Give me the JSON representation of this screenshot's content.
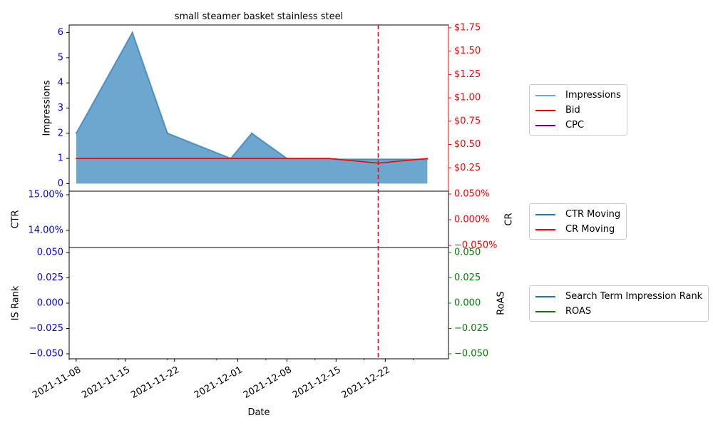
{
  "chart_data": {
    "type": "area",
    "title": "small steamer basket stainless steel",
    "xlabel": "Date",
    "x_ticks": [
      "2021-11-08",
      "2021-11-15",
      "2021-11-22",
      "2021-12-01",
      "2021-12-08",
      "2021-12-15",
      "2021-12-22"
    ],
    "x_range": [
      "2021-11-07",
      "2021-12-31"
    ],
    "marker_date": "2021-12-21",
    "marker_color": "#ff0000",
    "panels": [
      {
        "id": "top",
        "left_axis": {
          "label": "Impressions",
          "ticks": [
            "0",
            "1",
            "2",
            "3",
            "4",
            "5",
            "6"
          ],
          "ylim": [
            -0.3,
            6.3
          ],
          "color": "#0000ff"
        },
        "right_axis": {
          "label": "",
          "ticks": [
            "$0.25",
            "$0.50",
            "$0.75",
            "$1.00",
            "$1.25",
            "$1.50",
            "$1.75"
          ],
          "tick_values": [
            0.25,
            0.5,
            0.75,
            1.0,
            1.25,
            1.5,
            1.75
          ],
          "ylim": [
            0,
            1.78
          ],
          "color": "#ff0000"
        },
        "series": [
          {
            "name": "Impressions",
            "axis": "left",
            "color": "#1f77b4",
            "kind": "area",
            "x": [
              "2021-11-08",
              "2021-11-16",
              "2021-11-21",
              "2021-11-30",
              "2021-12-03",
              "2021-12-08",
              "2021-12-14",
              "2021-12-15",
              "2021-12-28"
            ],
            "values": [
              2,
              6,
              2,
              1,
              2,
              1,
              1,
              0.97,
              0.97
            ]
          },
          {
            "name": "Bid",
            "axis": "right",
            "color": "#ff0000",
            "kind": "line",
            "x": [
              "2021-11-08",
              "2021-12-14",
              "2021-12-21",
              "2021-12-28"
            ],
            "values": [
              0.35,
              0.35,
              0.3,
              0.35
            ]
          },
          {
            "name": "CPC",
            "axis": "right",
            "color": "#800080",
            "kind": "line",
            "x": [],
            "values": []
          }
        ]
      },
      {
        "id": "middle",
        "left_axis": {
          "label": "CTR",
          "ticks": [
            "15.00%",
            "14.00%"
          ],
          "color": "#0000ff"
        },
        "right_axis": {
          "label": "CR",
          "ticks": [
            "0.050%",
            "0.000%",
            "−0.050%"
          ],
          "color": "#ff0000"
        },
        "series": [
          {
            "name": "CTR Moving",
            "color": "#1f77b4",
            "values": []
          },
          {
            "name": "CR Moving",
            "color": "#ff0000",
            "values": []
          }
        ]
      },
      {
        "id": "bottom",
        "left_axis": {
          "label": "IS Rank",
          "ticks": [
            "0.050",
            "0.025",
            "0.000",
            "−0.025",
            "−0.050"
          ],
          "color": "#0000ff"
        },
        "right_axis": {
          "label": "RoAS",
          "ticks": [
            "0.050",
            "0.025",
            "0.000",
            "−0.025",
            "−0.050"
          ],
          "color": "#008000"
        },
        "series": [
          {
            "name": "Search Term Impression Rank",
            "color": "#1f77b4",
            "values": []
          },
          {
            "name": "ROAS",
            "color": "#008000",
            "values": []
          }
        ]
      }
    ]
  },
  "legends": [
    {
      "id": "top",
      "items": [
        {
          "label": "Impressions",
          "color": "#6aa6d3"
        },
        {
          "label": "Bid",
          "color": "#ff0000"
        },
        {
          "label": "CPC",
          "color": "#800080"
        }
      ]
    },
    {
      "id": "middle",
      "items": [
        {
          "label": "CTR Moving",
          "color": "#1f77b4"
        },
        {
          "label": "CR Moving",
          "color": "#ff0000"
        }
      ]
    },
    {
      "id": "bottom",
      "items": [
        {
          "label": "Search Term Impression Rank",
          "color": "#1f77b4"
        },
        {
          "label": "ROAS",
          "color": "#008000"
        }
      ]
    }
  ]
}
